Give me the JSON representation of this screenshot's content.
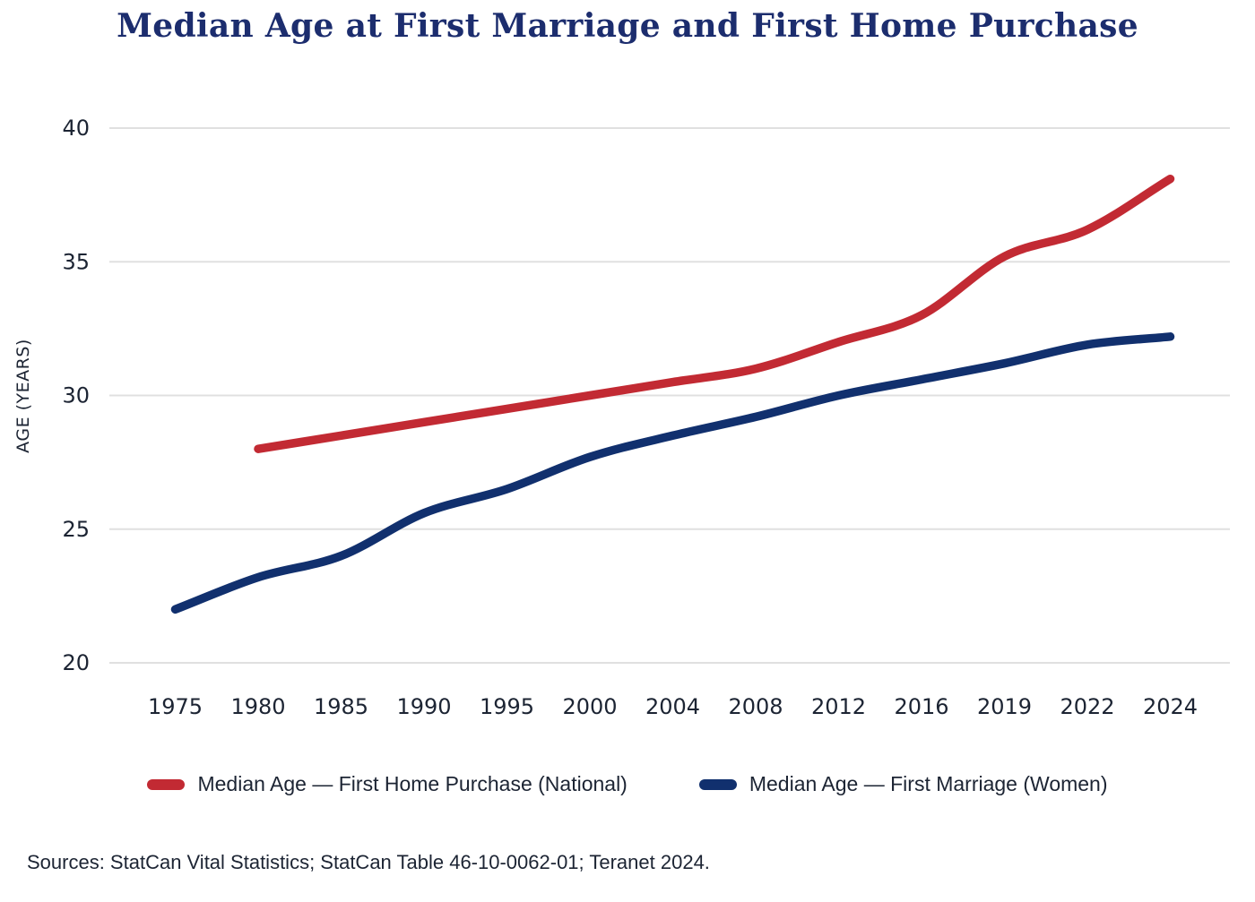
{
  "title": "Median Age at First Marriage and First Home Purchase",
  "sources": "Sources: StatCan Vital Statistics; StatCan Table 46-10-0062-01; Teranet 2024.",
  "colors": {
    "red": "#c22a33",
    "navy": "#11306e",
    "title": "#1c2d6e",
    "grid": "#e0e0e0",
    "text": "#1c2433"
  },
  "chart_data": {
    "type": "line",
    "title": "Median Age at First Marriage and First Home Purchase",
    "ylabel": "AGE (YEARS)",
    "xlabel": "",
    "categories": [
      "1975",
      "1980",
      "1985",
      "1990",
      "1995",
      "2000",
      "2004",
      "2008",
      "2012",
      "2016",
      "2019",
      "2022",
      "2024"
    ],
    "yticks": [
      20,
      25,
      30,
      35,
      40
    ],
    "ylim": [
      18,
      41.5
    ],
    "grid": true,
    "legend_position": "bottom",
    "series": [
      {
        "name": "Median Age — First Home Purchase (National)",
        "color": "#c22a33",
        "values": [
          null,
          28.0,
          28.5,
          29.0,
          29.5,
          30.0,
          30.5,
          31.0,
          32.0,
          33.0,
          35.2,
          36.2,
          38.1
        ]
      },
      {
        "name": "Median Age — First Marriage (Women)",
        "color": "#11306e",
        "values": [
          22.0,
          23.2,
          24.0,
          25.6,
          26.5,
          27.7,
          28.5,
          29.2,
          30.0,
          30.6,
          31.2,
          31.9,
          32.2
        ]
      }
    ]
  }
}
